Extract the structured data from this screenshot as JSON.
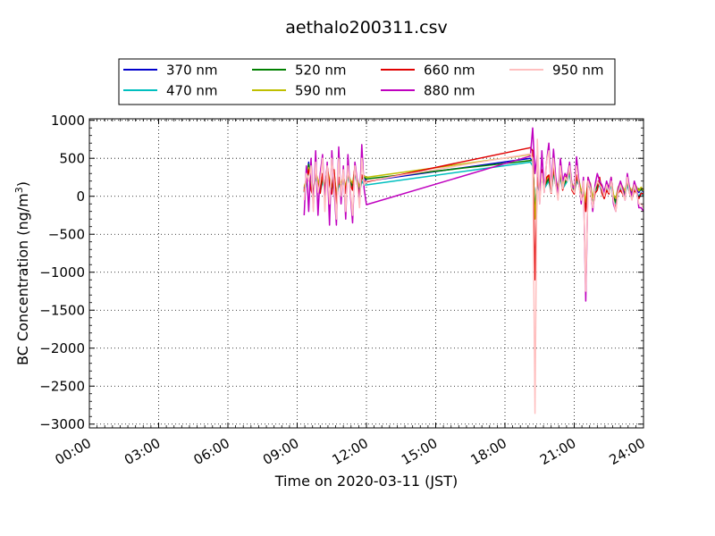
{
  "chart_data": {
    "type": "line",
    "title": "aethalo200311.csv",
    "xlabel": "Time on 2020-03-11 (JST)",
    "ylabel_main": "BC Concentration (ng/m",
    "ylabel_sup": "3",
    "ylabel_close": ")",
    "xlim": [
      0,
      24
    ],
    "ylim": [
      -3050,
      1020
    ],
    "grid": true,
    "legend_position": "top",
    "x_ticks": [
      {
        "value": 0,
        "label": "00:00"
      },
      {
        "value": 3,
        "label": "03:00"
      },
      {
        "value": 6,
        "label": "06:00"
      },
      {
        "value": 9,
        "label": "09:00"
      },
      {
        "value": 12,
        "label": "12:00"
      },
      {
        "value": 15,
        "label": "15:00"
      },
      {
        "value": 18,
        "label": "18:00"
      },
      {
        "value": 21,
        "label": "21:00"
      },
      {
        "value": 24,
        "label": "24:00"
      }
    ],
    "y_ticks": [
      {
        "value": 1000,
        "label": "1000"
      },
      {
        "value": 500,
        "label": "500"
      },
      {
        "value": 0,
        "label": "0"
      },
      {
        "value": -500,
        "label": "−500"
      },
      {
        "value": -1000,
        "label": "−1000"
      },
      {
        "value": -1500,
        "label": "−1500"
      },
      {
        "value": -2000,
        "label": "−2000"
      },
      {
        "value": -2500,
        "label": "−2500"
      },
      {
        "value": -3000,
        "label": "−3000"
      }
    ],
    "series": [
      {
        "name": "370 nm",
        "color": "#0000cc",
        "x": [
          9.3,
          9.4,
          9.5,
          9.6,
          9.7,
          9.8,
          9.9,
          10.0,
          10.1,
          10.2,
          10.3,
          10.4,
          10.5,
          10.6,
          10.7,
          10.8,
          10.9,
          11.0,
          11.1,
          11.2,
          11.3,
          11.4,
          11.5,
          11.6,
          11.7,
          11.8,
          11.9,
          12.0,
          19.1,
          19.2,
          19.3,
          19.4,
          19.5,
          19.6,
          19.7,
          19.8,
          19.9,
          20.0,
          20.1,
          20.2,
          20.3,
          20.4,
          20.5,
          20.6,
          20.7,
          20.8,
          20.9,
          21.0,
          21.1,
          21.2,
          21.3,
          21.4,
          21.5,
          21.6,
          21.7,
          21.8,
          21.9,
          22.0,
          22.1,
          22.2,
          22.3,
          22.4,
          22.5,
          22.6,
          22.7,
          22.8,
          22.9,
          23.0,
          23.1,
          23.2,
          23.3,
          23.4,
          23.5,
          23.6,
          23.7,
          23.8,
          23.9,
          24.0
        ],
        "values": [
          100,
          200,
          450,
          150,
          50,
          300,
          200,
          100,
          250,
          100,
          350,
          200,
          100,
          300,
          0,
          200,
          150,
          250,
          100,
          300,
          200,
          150,
          350,
          200,
          100,
          250,
          250,
          200,
          500,
          450,
          -200,
          200,
          100,
          300,
          150,
          200,
          250,
          100,
          350,
          200,
          100,
          300,
          150,
          200,
          250,
          350,
          150,
          100,
          250,
          200,
          50,
          100,
          -100,
          200,
          150,
          -50,
          100,
          150,
          200,
          100,
          50,
          150,
          100,
          200,
          0,
          -50,
          100,
          150,
          100,
          50,
          200,
          100,
          50,
          150,
          100,
          50,
          100,
          50
        ]
      },
      {
        "name": "470 nm",
        "color": "#00bfbf",
        "x": [
          9.3,
          9.4,
          9.5,
          9.6,
          9.7,
          9.8,
          9.9,
          10.0,
          10.1,
          10.2,
          10.3,
          10.4,
          10.5,
          10.6,
          10.7,
          10.8,
          10.9,
          11.0,
          11.1,
          11.2,
          11.3,
          11.4,
          11.5,
          11.6,
          11.7,
          11.8,
          11.9,
          12.0,
          19.1,
          19.2,
          19.3,
          19.4,
          19.5,
          19.6,
          19.7,
          19.8,
          19.9,
          20.0,
          20.1,
          20.2,
          20.3,
          20.4,
          20.5,
          20.6,
          20.7,
          20.8,
          20.9,
          21.0,
          21.1,
          21.2,
          21.3,
          21.4,
          21.5,
          21.6,
          21.7,
          21.8,
          21.9,
          22.0,
          22.1,
          22.2,
          22.3,
          22.4,
          22.5,
          22.6,
          22.7,
          22.8,
          22.9,
          23.0,
          23.1,
          23.2,
          23.3,
          23.4,
          23.5,
          23.6,
          23.7,
          23.8,
          23.9,
          24.0
        ],
        "values": [
          50,
          150,
          400,
          100,
          50,
          250,
          150,
          50,
          200,
          50,
          300,
          150,
          50,
          250,
          -50,
          150,
          100,
          200,
          50,
          250,
          150,
          100,
          300,
          150,
          50,
          200,
          150,
          150,
          450,
          400,
          -150,
          150,
          50,
          250,
          100,
          150,
          200,
          50,
          300,
          150,
          50,
          250,
          100,
          150,
          200,
          300,
          100,
          50,
          200,
          150,
          0,
          50,
          -150,
          150,
          100,
          -100,
          50,
          100,
          150,
          50,
          0,
          100,
          50,
          150,
          -50,
          -100,
          50,
          100,
          50,
          0,
          150,
          50,
          0,
          100,
          50,
          0,
          50,
          0
        ]
      },
      {
        "name": "520 nm",
        "color": "#008000",
        "x": [
          9.3,
          9.4,
          9.5,
          9.6,
          9.7,
          9.8,
          9.9,
          10.0,
          10.1,
          10.2,
          10.3,
          10.4,
          10.5,
          10.6,
          10.7,
          10.8,
          10.9,
          11.0,
          11.1,
          11.2,
          11.3,
          11.4,
          11.5,
          11.6,
          11.7,
          11.8,
          11.9,
          12.0,
          19.1,
          19.2,
          19.3,
          19.4,
          19.5,
          19.6,
          19.7,
          19.8,
          19.9,
          20.0,
          20.1,
          20.2,
          20.3,
          20.4,
          20.5,
          20.6,
          20.7,
          20.8,
          20.9,
          21.0,
          21.1,
          21.2,
          21.3,
          21.4,
          21.5,
          21.6,
          21.7,
          21.8,
          21.9,
          22.0,
          22.1,
          22.2,
          22.3,
          22.4,
          22.5,
          22.6,
          22.7,
          22.8,
          22.9,
          23.0,
          23.1,
          23.2,
          23.3,
          23.4,
          23.5,
          23.6,
          23.7,
          23.8,
          23.9,
          24.0
        ],
        "values": [
          80,
          180,
          420,
          120,
          30,
          280,
          180,
          80,
          230,
          80,
          330,
          180,
          80,
          280,
          -20,
          180,
          130,
          230,
          80,
          280,
          180,
          130,
          330,
          180,
          80,
          230,
          250,
          230,
          470,
          480,
          -250,
          180,
          80,
          280,
          130,
          180,
          230,
          80,
          330,
          180,
          80,
          280,
          130,
          180,
          230,
          330,
          130,
          80,
          230,
          180,
          30,
          80,
          -120,
          180,
          130,
          -80,
          80,
          130,
          180,
          80,
          30,
          130,
          80,
          180,
          -20,
          -80,
          80,
          130,
          80,
          30,
          180,
          80,
          30,
          130,
          80,
          100,
          80,
          90
        ]
      },
      {
        "name": "590 nm",
        "color": "#bfbf00",
        "x": [
          9.3,
          9.4,
          9.5,
          9.6,
          9.7,
          9.8,
          9.9,
          10.0,
          10.1,
          10.2,
          10.3,
          10.4,
          10.5,
          10.6,
          10.7,
          10.8,
          10.9,
          11.0,
          11.1,
          11.2,
          11.3,
          11.4,
          11.5,
          11.6,
          11.7,
          11.8,
          11.9,
          12.0,
          19.1,
          19.2,
          19.3,
          19.4,
          19.5,
          19.6,
          19.7,
          19.8,
          19.9,
          20.0,
          20.1,
          20.2,
          20.3,
          20.4,
          20.5,
          20.6,
          20.7,
          20.8,
          20.9,
          21.0,
          21.1,
          21.2,
          21.3,
          21.4,
          21.5,
          21.6,
          21.7,
          21.8,
          21.9,
          22.0,
          22.1,
          22.2,
          22.3,
          22.4,
          22.5,
          22.6,
          22.7,
          22.8,
          22.9,
          23.0,
          23.1,
          23.2,
          23.3,
          23.4,
          23.5,
          23.6,
          23.7,
          23.8,
          23.9,
          24.0
        ],
        "values": [
          120,
          220,
          380,
          160,
          60,
          320,
          220,
          120,
          270,
          120,
          370,
          220,
          120,
          320,
          20,
          220,
          170,
          270,
          120,
          320,
          220,
          170,
          370,
          220,
          120,
          270,
          270,
          250,
          550,
          500,
          -300,
          220,
          120,
          320,
          170,
          220,
          270,
          120,
          370,
          220,
          120,
          320,
          170,
          220,
          270,
          370,
          170,
          120,
          270,
          220,
          70,
          120,
          -80,
          220,
          170,
          -30,
          120,
          170,
          220,
          120,
          70,
          170,
          120,
          220,
          20,
          -30,
          120,
          170,
          120,
          70,
          220,
          120,
          70,
          170,
          120,
          70,
          120,
          70
        ]
      },
      {
        "name": "660 nm",
        "color": "#e00000",
        "x": [
          9.3,
          9.4,
          9.5,
          9.6,
          9.7,
          9.8,
          9.9,
          10.0,
          10.1,
          10.2,
          10.3,
          10.4,
          10.5,
          10.6,
          10.7,
          10.8,
          10.9,
          11.0,
          11.1,
          11.2,
          11.3,
          11.4,
          11.5,
          11.6,
          11.7,
          11.8,
          11.9,
          12.0,
          19.1,
          19.2,
          19.3,
          19.4,
          19.5,
          19.6,
          19.7,
          19.8,
          19.9,
          20.0,
          20.1,
          20.2,
          20.3,
          20.4,
          20.5,
          20.6,
          20.7,
          20.8,
          20.9,
          21.0,
          21.1,
          21.2,
          21.3,
          21.4,
          21.5,
          21.6,
          21.7,
          21.8,
          21.9,
          22.0,
          22.1,
          22.2,
          22.3,
          22.4,
          22.5,
          22.6,
          22.7,
          22.8,
          22.9,
          23.0,
          23.1,
          23.2,
          23.3,
          23.4,
          23.5,
          23.6,
          23.7,
          23.8,
          23.9,
          24.0
        ],
        "values": [
          60,
          250,
          350,
          80,
          0,
          350,
          150,
          40,
          300,
          60,
          400,
          150,
          30,
          350,
          -100,
          250,
          80,
          280,
          40,
          350,
          150,
          80,
          400,
          150,
          30,
          280,
          200,
          190,
          640,
          600,
          -1100,
          250,
          50,
          350,
          100,
          250,
          280,
          40,
          400,
          150,
          20,
          350,
          80,
          250,
          280,
          400,
          80,
          30,
          280,
          150,
          -30,
          30,
          -200,
          250,
          80,
          -150,
          40,
          80,
          250,
          40,
          -30,
          80,
          30,
          250,
          -80,
          -150,
          40,
          80,
          30,
          -30,
          250,
          40,
          -30,
          80,
          40,
          -30,
          40,
          30
        ]
      },
      {
        "name": "880 nm",
        "color": "#bf00bf",
        "x": [
          9.3,
          9.4,
          9.5,
          9.6,
          9.7,
          9.8,
          9.9,
          10.0,
          10.1,
          10.2,
          10.3,
          10.4,
          10.5,
          10.6,
          10.7,
          10.8,
          10.9,
          11.0,
          11.1,
          11.2,
          11.3,
          11.4,
          11.5,
          11.6,
          11.7,
          11.8,
          11.9,
          12.0,
          19.1,
          19.2,
          19.3,
          19.4,
          19.5,
          19.6,
          19.7,
          19.8,
          19.9,
          20.0,
          20.1,
          20.2,
          20.3,
          20.4,
          20.5,
          20.6,
          20.7,
          20.8,
          20.9,
          21.0,
          21.1,
          21.2,
          21.3,
          21.4,
          21.5,
          21.6,
          21.7,
          21.8,
          21.9,
          22.0,
          22.1,
          22.2,
          22.3,
          22.4,
          22.5,
          22.6,
          22.7,
          22.8,
          22.9,
          23.0,
          23.1,
          23.2,
          23.3,
          23.4,
          23.5,
          23.6,
          23.7,
          23.8,
          23.9,
          24.0
        ],
        "values": [
          -250,
          400,
          -200,
          500,
          -150,
          600,
          -250,
          300,
          550,
          -100,
          450,
          -380,
          600,
          100,
          -380,
          650,
          -100,
          400,
          -300,
          550,
          50,
          -350,
          450,
          200,
          -100,
          680,
          100,
          -110,
          530,
          900,
          300,
          550,
          -100,
          600,
          50,
          450,
          700,
          100,
          620,
          250,
          0,
          500,
          200,
          300,
          250,
          450,
          150,
          100,
          520,
          200,
          -100,
          250,
          -1380,
          250,
          150,
          -200,
          150,
          300,
          200,
          150,
          50,
          200,
          100,
          250,
          -100,
          -200,
          100,
          200,
          100,
          -50,
          300,
          100,
          0,
          200,
          100,
          -150,
          -150,
          -200
        ]
      },
      {
        "name": "950 nm",
        "color": "#ffbfbf",
        "x": [
          9.3,
          9.4,
          9.5,
          9.6,
          9.7,
          9.8,
          9.9,
          10.0,
          10.1,
          10.2,
          10.3,
          10.4,
          10.5,
          10.6,
          10.7,
          10.8,
          10.9,
          11.0,
          11.1,
          11.2,
          11.3,
          11.4,
          11.5,
          11.6,
          11.7,
          11.8,
          11.9,
          12.0,
          19.1,
          19.2,
          19.3,
          19.4,
          19.5,
          19.6,
          19.7,
          19.8,
          19.9,
          20.0,
          20.1,
          20.2,
          20.3,
          20.4,
          20.5,
          20.6,
          20.7,
          20.8,
          20.9,
          21.0,
          21.1,
          21.2,
          21.3,
          21.4,
          21.5,
          21.6,
          21.7,
          21.8,
          21.9,
          22.0,
          22.1,
          22.2,
          22.3,
          22.4,
          22.5,
          22.6,
          22.7,
          22.8,
          22.9,
          23.0,
          23.1,
          23.2,
          23.3,
          23.4,
          23.5,
          23.6,
          23.7,
          23.8,
          23.9,
          24.0
        ],
        "values": [
          -50,
          300,
          200,
          400,
          -200,
          450,
          50,
          200,
          500,
          -200,
          400,
          -100,
          500,
          200,
          -300,
          500,
          0,
          350,
          -200,
          400,
          100,
          -250,
          400,
          150,
          -150,
          500,
          150,
          200,
          560,
          500,
          -2860,
          750,
          -100,
          300,
          50,
          450,
          600,
          50,
          500,
          150,
          -50,
          400,
          100,
          250,
          200,
          400,
          100,
          50,
          400,
          150,
          -50,
          200,
          -1250,
          200,
          100,
          -150,
          100,
          200,
          150,
          100,
          0,
          150,
          50,
          200,
          -50,
          -200,
          50,
          150,
          50,
          -50,
          250,
          50,
          -50,
          150,
          50,
          -100,
          -100,
          -150
        ]
      }
    ]
  }
}
